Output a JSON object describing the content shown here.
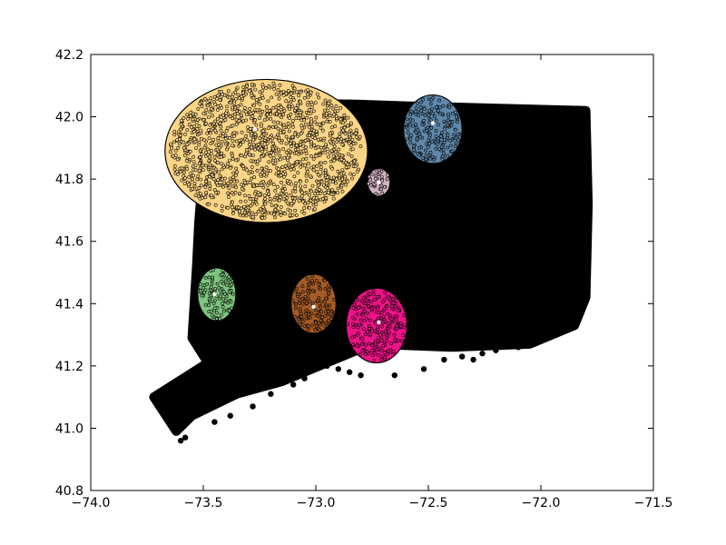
{
  "chart_data": {
    "type": "scatter",
    "xlim": [
      -74.0,
      -71.5
    ],
    "ylim": [
      40.8,
      42.2
    ],
    "xticks": [
      "−74.0",
      "−73.5",
      "−73.0",
      "−72.5",
      "−72.0",
      "−71.5"
    ],
    "xtick_values": [
      -74.0,
      -73.5,
      -73.0,
      -72.5,
      -72.0,
      -71.5
    ],
    "yticks": [
      "40.8",
      "41.0",
      "41.2",
      "41.4",
      "41.6",
      "41.8",
      "42.0",
      "42.2"
    ],
    "ytick_values": [
      40.8,
      41.0,
      41.2,
      41.4,
      41.6,
      41.8,
      42.0,
      42.2
    ],
    "grid": false,
    "legend": false,
    "background_points_color": "#000000",
    "background_region": {
      "outline": [
        [
          -73.49,
          42.05
        ],
        [
          -72.8,
          42.04
        ],
        [
          -72.6,
          42.035
        ],
        [
          -71.8,
          42.02
        ],
        [
          -71.79,
          41.72
        ],
        [
          -71.8,
          41.42
        ],
        [
          -71.85,
          41.33
        ],
        [
          -72.05,
          41.27
        ],
        [
          -72.4,
          41.26
        ],
        [
          -72.75,
          41.27
        ],
        [
          -72.95,
          41.21
        ],
        [
          -73.15,
          41.15
        ],
        [
          -73.35,
          41.11
        ],
        [
          -73.55,
          41.04
        ],
        [
          -73.62,
          40.99
        ],
        [
          -73.72,
          41.1
        ],
        [
          -73.48,
          41.21
        ],
        [
          -73.55,
          41.29
        ],
        [
          -73.53,
          41.52
        ],
        [
          -73.52,
          41.66
        ],
        [
          -73.5,
          41.84
        ],
        [
          -73.49,
          42.05
        ]
      ],
      "outliers": [
        [
          -72.95,
          41.2
        ],
        [
          -72.9,
          41.19
        ],
        [
          -72.85,
          41.18
        ],
        [
          -72.8,
          41.17
        ],
        [
          -72.65,
          41.17
        ],
        [
          -72.52,
          41.19
        ],
        [
          -72.43,
          41.22
        ],
        [
          -72.35,
          41.23
        ],
        [
          -72.3,
          41.22
        ],
        [
          -72.26,
          41.24
        ],
        [
          -72.2,
          41.25
        ],
        [
          -72.1,
          41.26
        ],
        [
          -73.1,
          41.14
        ],
        [
          -73.2,
          41.11
        ],
        [
          -73.28,
          41.07
        ],
        [
          -73.38,
          41.04
        ],
        [
          -73.45,
          41.02
        ],
        [
          -73.58,
          40.97
        ],
        [
          -73.6,
          40.96
        ],
        [
          -73.05,
          41.16
        ]
      ]
    },
    "clusters": [
      {
        "color": "#fdd586",
        "center": [
          -73.22,
          41.89
        ],
        "radius": [
          0.45,
          0.23
        ]
      },
      {
        "color": "#5f88aa",
        "center": [
          -72.48,
          41.96
        ],
        "radius": [
          0.13,
          0.11
        ]
      },
      {
        "color": "#d1b2c3",
        "center": [
          -72.72,
          41.79
        ],
        "radius": [
          0.05,
          0.045
        ]
      },
      {
        "color": "#7dc47e",
        "center": [
          -73.44,
          41.43
        ],
        "radius": [
          0.085,
          0.085
        ]
      },
      {
        "color": "#a45b25",
        "center": [
          -73.01,
          41.4
        ],
        "radius": [
          0.1,
          0.095
        ]
      },
      {
        "color": "#ee1288",
        "center": [
          -72.73,
          41.33
        ],
        "radius": [
          0.135,
          0.12
        ]
      }
    ],
    "centroids": [
      [
        -73.27,
        41.96
      ],
      [
        -72.48,
        41.98
      ],
      [
        -72.72,
        41.79
      ],
      [
        -73.45,
        41.43
      ],
      [
        -73.01,
        41.39
      ],
      [
        -72.72,
        41.34
      ]
    ],
    "centroid_color": "#ffffff"
  }
}
